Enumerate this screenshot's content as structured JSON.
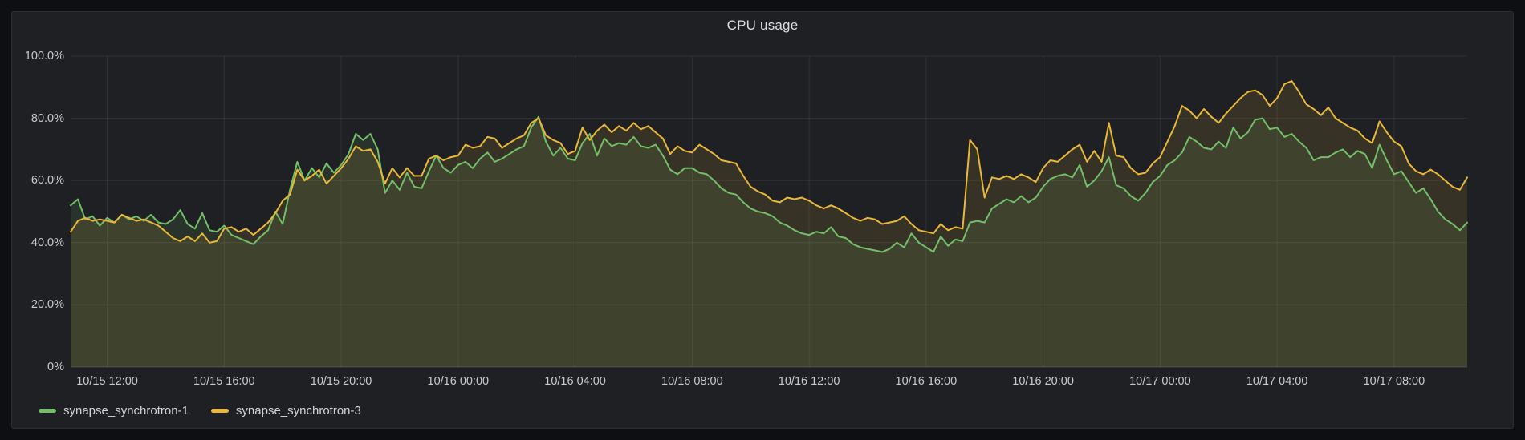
{
  "panel": {
    "title": "CPU usage"
  },
  "colors": {
    "background": "#0e0f13",
    "panel_background": "#1e2024",
    "grid": "rgba(204,204,220,0.10)",
    "axis_baseline": "rgba(204,204,220,0.20)",
    "tick_text": "#c8c9d0",
    "series_green": "#73BF69",
    "series_yellow": "#EAB839"
  },
  "chart_data": {
    "type": "line",
    "title": "CPU usage",
    "unit": "percent",
    "x_start": "10/15 10:45",
    "x_end": "10/17 10:30",
    "step_minutes": 15,
    "grid": true,
    "legend_position": "bottom-left",
    "ylim": [
      0,
      100
    ],
    "y_ticks": [
      "100.0%",
      "80.0%",
      "60.0%",
      "40.0%",
      "20.0%",
      "0%"
    ],
    "y_tick_values": [
      100,
      80,
      60,
      40,
      20,
      0
    ],
    "x_tick_labels": [
      "10/15 12:00",
      "10/15 16:00",
      "10/15 20:00",
      "10/16 00:00",
      "10/16 04:00",
      "10/16 08:00",
      "10/16 12:00",
      "10/16 16:00",
      "10/16 20:00",
      "10/17 00:00",
      "10/17 04:00",
      "10/17 08:00"
    ],
    "x_tick_indices": [
      5,
      21,
      37,
      53,
      69,
      85,
      101,
      117,
      133,
      149,
      165,
      181
    ],
    "fill_opacity": 0.12,
    "line_width": 2,
    "series": [
      {
        "name": "synapse_synchrotron-1",
        "color": "#73BF69",
        "values": [
          52,
          54,
          47.5,
          48.5,
          45.5,
          48,
          46.5,
          49,
          47.5,
          48.5,
          47,
          49,
          46.5,
          46,
          47.5,
          50.5,
          46,
          44.5,
          49.5,
          44,
          43.5,
          45.5,
          42.5,
          41.5,
          40.5,
          39.5,
          42,
          44,
          50,
          46,
          57,
          66,
          60,
          64,
          61,
          65.5,
          62.5,
          65,
          68.5,
          75,
          73,
          75,
          70,
          56,
          60,
          57,
          62.5,
          58,
          57.5,
          63,
          68,
          64,
          62.5,
          65,
          66,
          64,
          67,
          69,
          66,
          67,
          68.5,
          70,
          71,
          77,
          80.5,
          72.5,
          68,
          70.5,
          67,
          66.5,
          72,
          75,
          68,
          73.5,
          71,
          72,
          71.5,
          74,
          71,
          70.5,
          71.5,
          68,
          63.5,
          62,
          64,
          64,
          62.5,
          62,
          60,
          57.5,
          56,
          55.5,
          53,
          51,
          50,
          49.5,
          48.5,
          46.5,
          45.5,
          44,
          43,
          42.5,
          43.5,
          43,
          45,
          42,
          41.5,
          39.5,
          38.5,
          38,
          37.5,
          37,
          38,
          40,
          38.5,
          43,
          40,
          38.5,
          37,
          42,
          39,
          41,
          40.5,
          46.5,
          47,
          46.5,
          51,
          52.5,
          54,
          53,
          55,
          53,
          54.5,
          58,
          60.5,
          61.5,
          62,
          61,
          65,
          58,
          60,
          63,
          67.5,
          58.5,
          57.5,
          55,
          53.5,
          56,
          59.5,
          61.5,
          65,
          66.5,
          69,
          74,
          72.5,
          70.5,
          70,
          72.5,
          70.5,
          77,
          73.5,
          75.5,
          79.5,
          80,
          76.5,
          77,
          74,
          75,
          72.5,
          70.5,
          66.5,
          67.5,
          67.5,
          69,
          70,
          67.5,
          69.5,
          68.5,
          64,
          71.5,
          66.5,
          62,
          63,
          59.5,
          56,
          57.5,
          54,
          50,
          47.5,
          46,
          44,
          46.5
        ]
      },
      {
        "name": "synapse_synchrotron-3",
        "color": "#EAB839",
        "values": [
          43.5,
          47,
          48,
          47,
          47.5,
          47,
          46.5,
          49,
          48,
          47,
          47.5,
          46.5,
          45.5,
          43.5,
          41.5,
          40.5,
          42,
          40.5,
          43,
          40,
          40.5,
          44.5,
          45,
          43.5,
          44.5,
          42.5,
          44.5,
          46.5,
          49.5,
          53.5,
          55.5,
          63.5,
          60,
          61.5,
          63.5,
          59,
          61.5,
          64,
          67,
          71,
          69.5,
          70,
          66,
          59,
          64,
          61,
          64,
          61.5,
          61.5,
          67,
          68,
          66.5,
          67.5,
          68,
          71.5,
          70.5,
          71,
          74,
          73.5,
          70.5,
          72,
          73.5,
          74.5,
          78.5,
          80,
          74.5,
          73,
          72,
          68.5,
          69.5,
          77,
          73,
          76,
          78,
          75.5,
          77.5,
          76,
          78.5,
          76.5,
          77.5,
          75.5,
          73.5,
          68.5,
          71,
          69.5,
          69,
          71.5,
          70,
          68.5,
          66.5,
          66,
          65.5,
          61.5,
          58,
          56.5,
          55.5,
          53.5,
          53,
          54.5,
          54,
          54.5,
          53.5,
          52,
          51,
          52,
          51,
          49.5,
          48,
          47,
          48,
          47.5,
          46,
          46.5,
          47,
          48.5,
          46,
          44,
          43.5,
          43,
          46,
          44,
          45,
          44.5,
          73,
          70,
          54.5,
          61,
          60.5,
          61.5,
          60.5,
          62,
          61,
          59.5,
          64,
          66.5,
          66,
          68,
          70,
          71.5,
          66,
          69.5,
          66,
          78.5,
          68,
          67.5,
          64,
          62,
          62.5,
          65.5,
          67.5,
          72.5,
          77.5,
          84,
          82.5,
          80,
          83,
          80.5,
          78.5,
          81.5,
          84,
          86.5,
          88.5,
          89,
          87.5,
          84,
          86.5,
          91,
          92,
          88.5,
          84.5,
          83,
          81,
          83.5,
          80,
          78.5,
          77,
          76,
          73.5,
          72,
          79,
          75.5,
          72.5,
          71,
          65.5,
          63,
          62,
          63.5,
          62,
          60,
          58,
          57,
          61
        ]
      }
    ]
  },
  "legend": {
    "items": [
      {
        "label": "synapse_synchrotron-1",
        "color": "#73BF69"
      },
      {
        "label": "synapse_synchrotron-3",
        "color": "#EAB839"
      }
    ]
  }
}
